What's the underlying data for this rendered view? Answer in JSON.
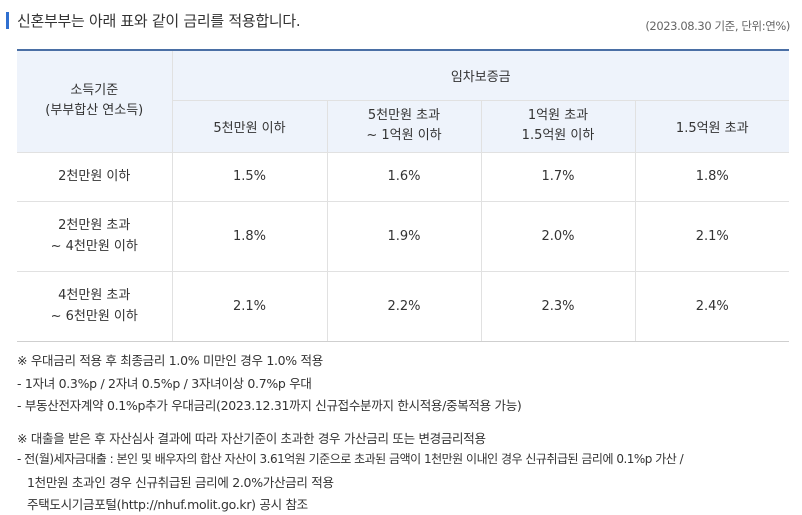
{
  "header": {
    "title": "신혼부부는 아래 표와 같이 금리를 적용합니다.",
    "note": "(2023.08.30 기준, 단위:연%)"
  },
  "table": {
    "income_header_line1": "소득기준",
    "income_header_line2": "(부부합산 연소득)",
    "deposit_header": "임차보증금",
    "deposit_columns": [
      {
        "line1": "5천만원 이하",
        "line2": ""
      },
      {
        "line1": "5천만원 초과",
        "line2": "~ 1억원 이하"
      },
      {
        "line1": "1억원 초과",
        "line2": "1.5억원 이하"
      },
      {
        "line1": "1.5억원 초과",
        "line2": ""
      }
    ],
    "rows": [
      {
        "income_line1": "2천만원 이하",
        "income_line2": "",
        "rates": [
          "1.5%",
          "1.6%",
          "1.7%",
          "1.8%"
        ]
      },
      {
        "income_line1": "2천만원 초과",
        "income_line2": "~ 4천만원 이하",
        "rates": [
          "1.8%",
          "1.9%",
          "2.0%",
          "2.1%"
        ]
      },
      {
        "income_line1": "4천만원 초과",
        "income_line2": "~ 6천만원 이하",
        "rates": [
          "2.1%",
          "2.2%",
          "2.3%",
          "2.4%"
        ]
      }
    ]
  },
  "notes": {
    "preferential_title": "※ 우대금리 적용 후 최종금리 1.0% 미만인 경우 1.0% 적용",
    "preferential_items": [
      "- 1자녀 0.3%p / 2자녀 0.5%p / 3자녀이상 0.7%p 우대",
      "- 부동산전자계약 0.1%p추가 우대금리(2023.12.31까지 신규접수분까지 한시적용/중복적용 가능)"
    ],
    "review_title": "※ 대출을 받은 후 자산심사 결과에 따라 자산기준이 초과한 경우 가산금리 또는 변경금리적용",
    "review_lines": [
      "- 전(월)세자금대출 : 본인 및 배우자의 합산 자산이 3.61억원 기준으로 초과된 금액이 1천만원 이내인 경우 신규취급된 금리에 0.1%p 가산 /",
      "1천만원 초과인 경우 신규취급된 금리에 2.0%가산금리 적용",
      "주택도시기금포털(http://nhuf.molit.go.kr) 공시 참조"
    ]
  }
}
